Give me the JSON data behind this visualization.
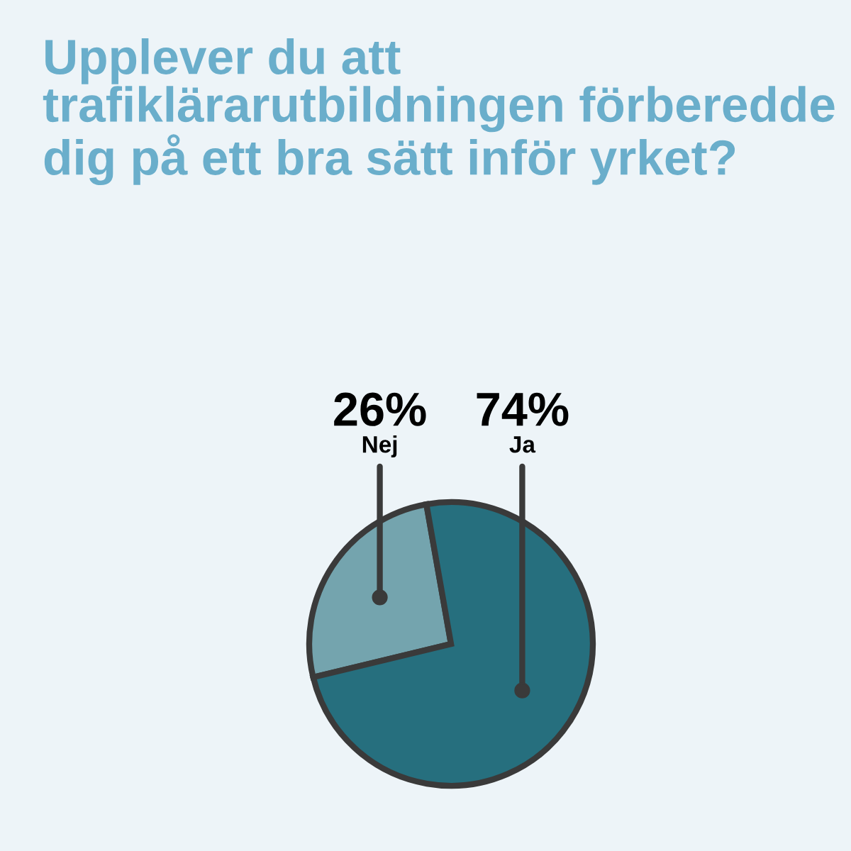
{
  "chart_data": {
    "type": "pie",
    "title": "Upplever du att trafiklärarutbildningen förberedde dig på ett bra sätt inför yrket?",
    "categories": [
      "Nej",
      "Ja"
    ],
    "values": [
      26,
      74
    ],
    "colors": [
      "#74a4ae",
      "#266f7e"
    ],
    "value_labels": [
      "26%",
      "74%"
    ]
  }
}
